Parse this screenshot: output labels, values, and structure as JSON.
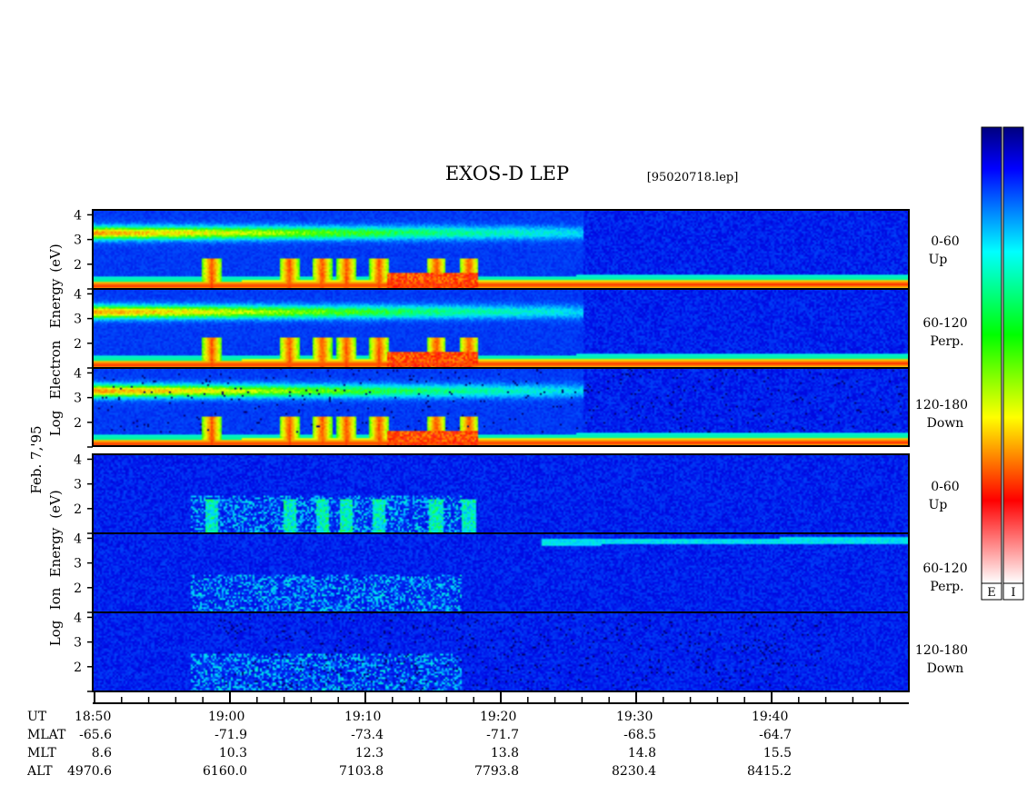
{
  "chart_data": {
    "type": "heatmap",
    "title": "EXOS-D LEP",
    "file_label": "[95020718.lep]",
    "date_label": "Feb. 7,'95",
    "groups": [
      {
        "name": "Electron",
        "ylabel_parts": [
          "Log",
          "Electron",
          "Energy",
          "(eV)"
        ],
        "panels": [
          {
            "label_top": "0-60",
            "label_bottom": "Up"
          },
          {
            "label_top": "60-120",
            "label_bottom": "Perp."
          },
          {
            "label_top": "120-180",
            "label_bottom": "Down"
          }
        ]
      },
      {
        "name": "Ion",
        "ylabel_parts": [
          "Log",
          "Ion",
          "Energy",
          "(eV)"
        ],
        "panels": [
          {
            "label_top": "0-60",
            "label_bottom": "Up"
          },
          {
            "label_top": "60-120",
            "label_bottom": "Perp."
          },
          {
            "label_top": "120-180",
            "label_bottom": "Down"
          }
        ]
      }
    ],
    "y_ticks": [
      "4",
      "3",
      "2"
    ],
    "ylim": [
      1,
      4.2
    ],
    "x_ticks": [
      "18:50",
      "19:00",
      "19:10",
      "19:20",
      "19:30",
      "19:40"
    ],
    "x_range_minutes": [
      0,
      60
    ],
    "ephemeris": [
      {
        "label": "UT",
        "values": [
          "18:50",
          "19:00",
          "19:10",
          "19:20",
          "19:30",
          "19:40"
        ]
      },
      {
        "label": "MLAT",
        "values": [
          "-65.6",
          "-71.9",
          "-73.4",
          "-71.7",
          "-68.5",
          "-64.7"
        ]
      },
      {
        "label": "MLT",
        "values": [
          "8.6",
          "10.3",
          "12.3",
          "13.8",
          "14.8",
          "15.5"
        ]
      },
      {
        "label": "ALT",
        "values": [
          "4970.6",
          "6160.0",
          "7103.8",
          "7793.8",
          "8230.4",
          "8415.2"
        ]
      }
    ],
    "colorbars": [
      {
        "name": "E",
        "colors": [
          "#00007f",
          "#0000ff",
          "#0080ff",
          "#00ffff",
          "#00ff80",
          "#00ff00",
          "#80ff00",
          "#ffff00",
          "#ff8000",
          "#ff0000",
          "#ff8080",
          "#ffffff"
        ]
      },
      {
        "name": "I",
        "colors": [
          "#00007f",
          "#0000ff",
          "#0080ff",
          "#00ffff",
          "#00ff80",
          "#00ff00",
          "#80ff00",
          "#ffff00",
          "#ff8000",
          "#ff0000",
          "#ff8080",
          "#ffffff"
        ]
      }
    ]
  }
}
